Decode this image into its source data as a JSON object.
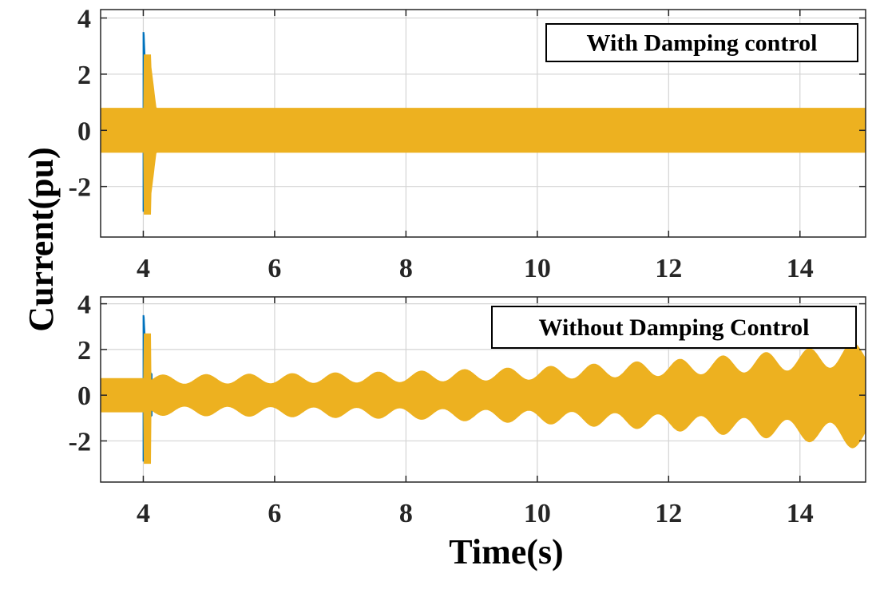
{
  "chart_data": [
    {
      "type": "line",
      "annotation": "With Damping control",
      "xlim": [
        3.35,
        15
      ],
      "ylim": [
        -3.8,
        4.3
      ],
      "xticks": [
        4,
        6,
        8,
        10,
        12,
        14
      ],
      "yticks": [
        -2,
        0,
        2,
        4
      ],
      "grid": true,
      "disturbance_time": 4.0,
      "transient_peak": {
        "series_blue": 3.5,
        "series_orange_max": 2.7,
        "series_orange_min": -3.0
      },
      "envelope": {
        "x": [
          3.35,
          4.0,
          4.1,
          4.2,
          15
        ],
        "y": [
          0.8,
          0.8,
          2.7,
          0.8,
          0.8
        ]
      },
      "series": [
        {
          "color": "#0072BD"
        },
        {
          "color": "#EDB120"
        }
      ]
    },
    {
      "type": "line",
      "annotation": "Without Damping Control",
      "xlim": [
        3.35,
        15
      ],
      "ylim": [
        -3.8,
        4.3
      ],
      "xticks": [
        4,
        6,
        8,
        10,
        12,
        14
      ],
      "yticks": [
        -2,
        0,
        2,
        4
      ],
      "grid": true,
      "disturbance_time": 4.0,
      "transient_peak": {
        "series_blue": 3.5,
        "series_orange_max": 2.7,
        "series_orange_min": -3.0
      },
      "oscillation": {
        "frequency_hz": 3.05,
        "amplitude": {
          "x": [
            4.2,
            6,
            8,
            10,
            12,
            14,
            15
          ],
          "y": [
            0.9,
            0.95,
            1.05,
            1.25,
            1.55,
            2.0,
            2.4
          ]
        }
      },
      "steady_level": 0.75,
      "series": [
        {
          "color": "#0072BD"
        },
        {
          "color": "#EDB120"
        }
      ]
    }
  ],
  "ylabel": "Current(pu)",
  "xlabel": "Time(s)"
}
